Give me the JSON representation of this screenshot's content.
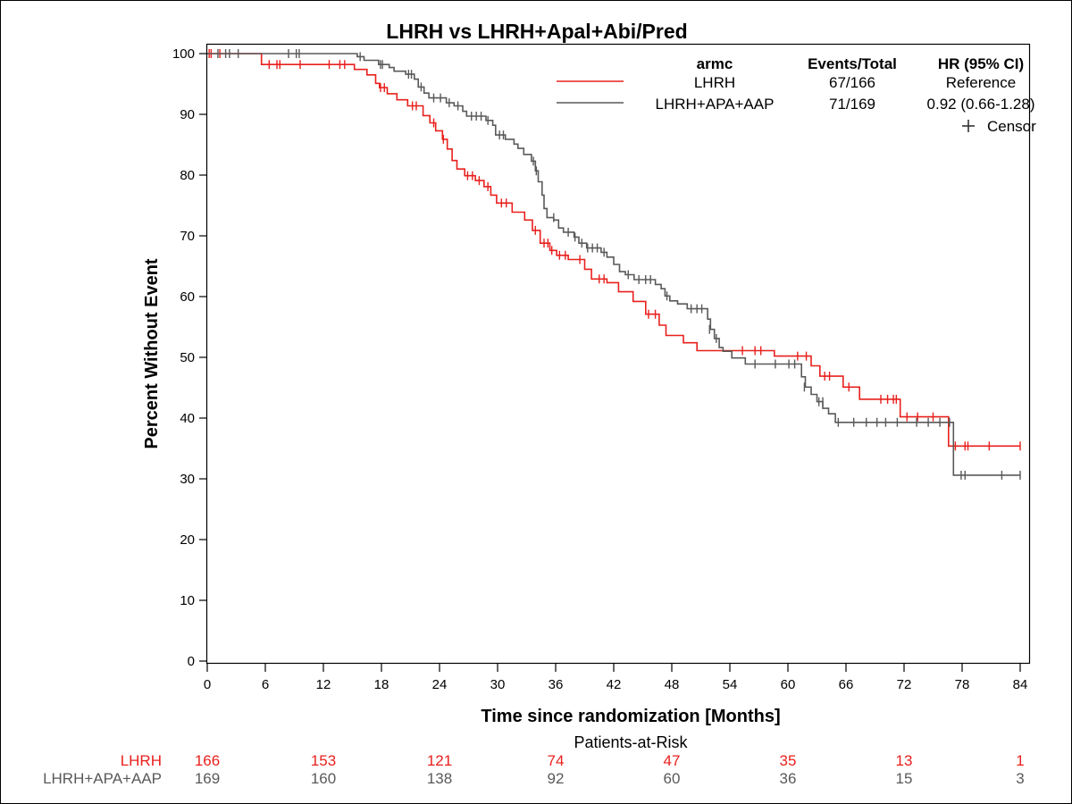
{
  "chart_data": {
    "type": "line",
    "subtype": "kaplan-meier",
    "title": "LHRH vs LHRH+Apal+Abi/Pred",
    "xlabel": "Time since randomization [Months]",
    "ylabel": "Percent Without Event",
    "xlim": [
      0,
      84
    ],
    "ylim": [
      0,
      100
    ],
    "xticks": [
      0,
      6,
      12,
      18,
      24,
      30,
      36,
      42,
      48,
      54,
      60,
      66,
      72,
      78,
      84
    ],
    "yticks": [
      0,
      10,
      20,
      30,
      40,
      50,
      60,
      70,
      80,
      90,
      100
    ],
    "grid": false,
    "legend": {
      "placement": "top-right",
      "header": {
        "arm": "armc",
        "events": "Events/Total",
        "hr": "HR (95% CI)"
      },
      "censor_label": "Censor"
    },
    "series": [
      {
        "name": "LHRH",
        "color": "#e8201d",
        "events_total": "67/166",
        "hr": "Reference",
        "steps": [
          [
            0,
            100
          ],
          [
            5.6,
            98.2
          ],
          [
            15.2,
            97.4
          ],
          [
            16.5,
            96.5
          ],
          [
            17.4,
            95.1
          ],
          [
            17.8,
            94.4
          ],
          [
            18.6,
            93.4
          ],
          [
            19.6,
            92.4
          ],
          [
            20.7,
            91.4
          ],
          [
            22.3,
            89.8
          ],
          [
            23.0,
            88.6
          ],
          [
            23.6,
            87.3
          ],
          [
            24.3,
            85.9
          ],
          [
            24.8,
            84.3
          ],
          [
            25.3,
            82.4
          ],
          [
            25.8,
            81.0
          ],
          [
            26.6,
            79.9
          ],
          [
            27.7,
            79.1
          ],
          [
            28.6,
            78.1
          ],
          [
            29.3,
            76.7
          ],
          [
            29.9,
            75.4
          ],
          [
            31.5,
            73.9
          ],
          [
            32.8,
            72.6
          ],
          [
            33.6,
            70.9
          ],
          [
            34.4,
            68.8
          ],
          [
            35.4,
            67.6
          ],
          [
            36.1,
            66.8
          ],
          [
            37.3,
            66.1
          ],
          [
            39.0,
            64.5
          ],
          [
            39.7,
            62.9
          ],
          [
            41.3,
            62.3
          ],
          [
            42.5,
            60.8
          ],
          [
            44.0,
            59.2
          ],
          [
            45.3,
            57.1
          ],
          [
            46.7,
            55.3
          ],
          [
            47.4,
            53.6
          ],
          [
            49.2,
            52.4
          ],
          [
            50.6,
            51.1
          ],
          [
            57.6,
            51.1
          ],
          [
            58.6,
            50.2
          ],
          [
            62.4,
            48.6
          ],
          [
            63.3,
            46.9
          ],
          [
            65.7,
            45.1
          ],
          [
            67.4,
            43.1
          ],
          [
            71.6,
            40.2
          ],
          [
            76.6,
            35.4
          ],
          [
            84,
            35.4
          ]
        ],
        "censors": [
          [
            0.2,
            100
          ],
          [
            0.4,
            100
          ],
          [
            1.3,
            100
          ],
          [
            6.4,
            98.2
          ],
          [
            7.2,
            98.2
          ],
          [
            7.5,
            98.2
          ],
          [
            9.6,
            98.2
          ],
          [
            12.6,
            98.2
          ],
          [
            13.7,
            98.2
          ],
          [
            14.2,
            98.2
          ],
          [
            17.9,
            94.4
          ],
          [
            18.3,
            94.4
          ],
          [
            21.2,
            91.4
          ],
          [
            21.6,
            91.4
          ],
          [
            23.4,
            88.6
          ],
          [
            24.4,
            85.9
          ],
          [
            26.9,
            79.9
          ],
          [
            27.4,
            79.9
          ],
          [
            28.1,
            79.1
          ],
          [
            29.0,
            78.1
          ],
          [
            30.4,
            75.4
          ],
          [
            30.9,
            75.4
          ],
          [
            33.9,
            70.9
          ],
          [
            34.8,
            68.8
          ],
          [
            35.2,
            68.8
          ],
          [
            35.6,
            67.6
          ],
          [
            36.4,
            66.8
          ],
          [
            37.0,
            66.8
          ],
          [
            38.5,
            66.1
          ],
          [
            40.5,
            62.9
          ],
          [
            41.0,
            62.9
          ],
          [
            45.6,
            57.1
          ],
          [
            46.3,
            57.1
          ],
          [
            55.3,
            51.1
          ],
          [
            56.6,
            51.1
          ],
          [
            57.2,
            51.1
          ],
          [
            61.0,
            50.2
          ],
          [
            61.9,
            50.2
          ],
          [
            63.8,
            46.9
          ],
          [
            64.3,
            46.9
          ],
          [
            66.3,
            45.1
          ],
          [
            69.6,
            43.1
          ],
          [
            70.3,
            43.1
          ],
          [
            70.9,
            43.1
          ],
          [
            71.2,
            43.1
          ],
          [
            72.3,
            40.2
          ],
          [
            73.4,
            40.2
          ],
          [
            75.0,
            40.2
          ],
          [
            77.3,
            35.4
          ],
          [
            78.3,
            35.4
          ],
          [
            78.6,
            35.4
          ],
          [
            80.8,
            35.4
          ],
          [
            84,
            35.4
          ]
        ]
      },
      {
        "name": "LHRH+APA+AAP",
        "color": "#595959",
        "events_total": "71/169",
        "hr": "0.92 (0.66-1.28)",
        "steps": [
          [
            0,
            100
          ],
          [
            15.5,
            99.5
          ],
          [
            16.2,
            98.9
          ],
          [
            17.7,
            98.2
          ],
          [
            18.8,
            97.7
          ],
          [
            19.3,
            97.1
          ],
          [
            20.5,
            96.6
          ],
          [
            21.4,
            95.8
          ],
          [
            21.8,
            94.5
          ],
          [
            22.4,
            93.5
          ],
          [
            22.9,
            92.7
          ],
          [
            24.7,
            91.9
          ],
          [
            25.5,
            91.4
          ],
          [
            26.4,
            90.5
          ],
          [
            26.8,
            89.7
          ],
          [
            28.8,
            89.0
          ],
          [
            29.5,
            88.2
          ],
          [
            29.8,
            86.6
          ],
          [
            30.8,
            85.9
          ],
          [
            31.7,
            85.1
          ],
          [
            32.1,
            84.4
          ],
          [
            32.7,
            83.4
          ],
          [
            33.5,
            82.3
          ],
          [
            33.9,
            80.7
          ],
          [
            34.2,
            78.9
          ],
          [
            34.6,
            76.7
          ],
          [
            34.8,
            74.5
          ],
          [
            35.1,
            73.0
          ],
          [
            35.8,
            72.6
          ],
          [
            36.3,
            71.3
          ],
          [
            36.8,
            70.6
          ],
          [
            37.9,
            69.8
          ],
          [
            38.4,
            68.8
          ],
          [
            39.2,
            68.0
          ],
          [
            40.7,
            67.3
          ],
          [
            41.3,
            66.5
          ],
          [
            42.0,
            65.3
          ],
          [
            42.6,
            64.1
          ],
          [
            43.2,
            63.6
          ],
          [
            44.1,
            62.8
          ],
          [
            46.3,
            62.0
          ],
          [
            46.9,
            61.3
          ],
          [
            47.3,
            60.1
          ],
          [
            47.8,
            59.3
          ],
          [
            48.6,
            58.8
          ],
          [
            49.6,
            58.0
          ],
          [
            51.7,
            56.3
          ],
          [
            52.0,
            54.6
          ],
          [
            52.4,
            53.1
          ],
          [
            52.9,
            51.6
          ],
          [
            53.3,
            51.0
          ],
          [
            54.2,
            49.9
          ],
          [
            55.6,
            48.9
          ],
          [
            61.0,
            48.9
          ],
          [
            61.4,
            46.8
          ],
          [
            61.8,
            45.1
          ],
          [
            62.4,
            43.9
          ],
          [
            63.0,
            42.7
          ],
          [
            63.6,
            41.6
          ],
          [
            64.2,
            40.7
          ],
          [
            64.9,
            39.3
          ],
          [
            76.8,
            39.3
          ],
          [
            77.1,
            30.6
          ],
          [
            84,
            30.6
          ]
        ],
        "censors": [
          [
            1.1,
            100
          ],
          [
            1.9,
            100
          ],
          [
            2.3,
            100
          ],
          [
            3.2,
            100
          ],
          [
            8.4,
            100
          ],
          [
            9.2,
            100
          ],
          [
            9.5,
            100
          ],
          [
            15.8,
            99.5
          ],
          [
            17.9,
            98.2
          ],
          [
            18.1,
            98.2
          ],
          [
            20.8,
            96.6
          ],
          [
            21.1,
            96.6
          ],
          [
            22.1,
            94.5
          ],
          [
            23.4,
            92.7
          ],
          [
            24.1,
            92.7
          ],
          [
            25.0,
            91.9
          ],
          [
            25.9,
            91.4
          ],
          [
            27.3,
            89.7
          ],
          [
            27.8,
            89.7
          ],
          [
            28.3,
            89.7
          ],
          [
            29.0,
            89.0
          ],
          [
            30.2,
            86.6
          ],
          [
            30.6,
            86.6
          ],
          [
            33.7,
            82.3
          ],
          [
            34.0,
            80.7
          ],
          [
            35.8,
            73.0
          ],
          [
            37.3,
            70.6
          ],
          [
            38.0,
            69.8
          ],
          [
            38.7,
            68.8
          ],
          [
            39.3,
            68.0
          ],
          [
            39.8,
            68.0
          ],
          [
            40.3,
            68.0
          ],
          [
            41.0,
            67.3
          ],
          [
            43.5,
            63.6
          ],
          [
            44.6,
            62.8
          ],
          [
            45.3,
            62.8
          ],
          [
            45.8,
            62.8
          ],
          [
            47.5,
            60.1
          ],
          [
            50.0,
            58.0
          ],
          [
            50.6,
            58.0
          ],
          [
            51.1,
            58.0
          ],
          [
            51.9,
            54.6
          ],
          [
            52.6,
            53.1
          ],
          [
            56.6,
            48.9
          ],
          [
            58.7,
            48.9
          ],
          [
            60.1,
            48.9
          ],
          [
            60.7,
            48.9
          ],
          [
            61.7,
            45.1
          ],
          [
            63.2,
            42.7
          ],
          [
            63.6,
            42.7
          ],
          [
            65.2,
            39.3
          ],
          [
            66.8,
            39.3
          ],
          [
            68.1,
            39.3
          ],
          [
            69.2,
            39.3
          ],
          [
            70.1,
            39.3
          ],
          [
            71.3,
            39.3
          ],
          [
            73.3,
            39.3
          ],
          [
            74.5,
            39.3
          ],
          [
            75.7,
            39.3
          ],
          [
            76.7,
            39.3
          ],
          [
            77.9,
            30.6
          ],
          [
            78.3,
            30.6
          ],
          [
            82.1,
            30.6
          ],
          [
            84.0,
            30.6
          ]
        ]
      }
    ],
    "risk_table": {
      "title": "Patients-at-Risk",
      "times": [
        0,
        12,
        24,
        36,
        48,
        60,
        72,
        84
      ],
      "rows": [
        {
          "name": "LHRH",
          "color": "#e8201d",
          "values": [
            166,
            153,
            121,
            74,
            47,
            35,
            13,
            1
          ]
        },
        {
          "name": "LHRH+APA+AAP",
          "color": "#595959",
          "values": [
            169,
            160,
            138,
            92,
            60,
            36,
            15,
            3
          ]
        }
      ]
    }
  }
}
